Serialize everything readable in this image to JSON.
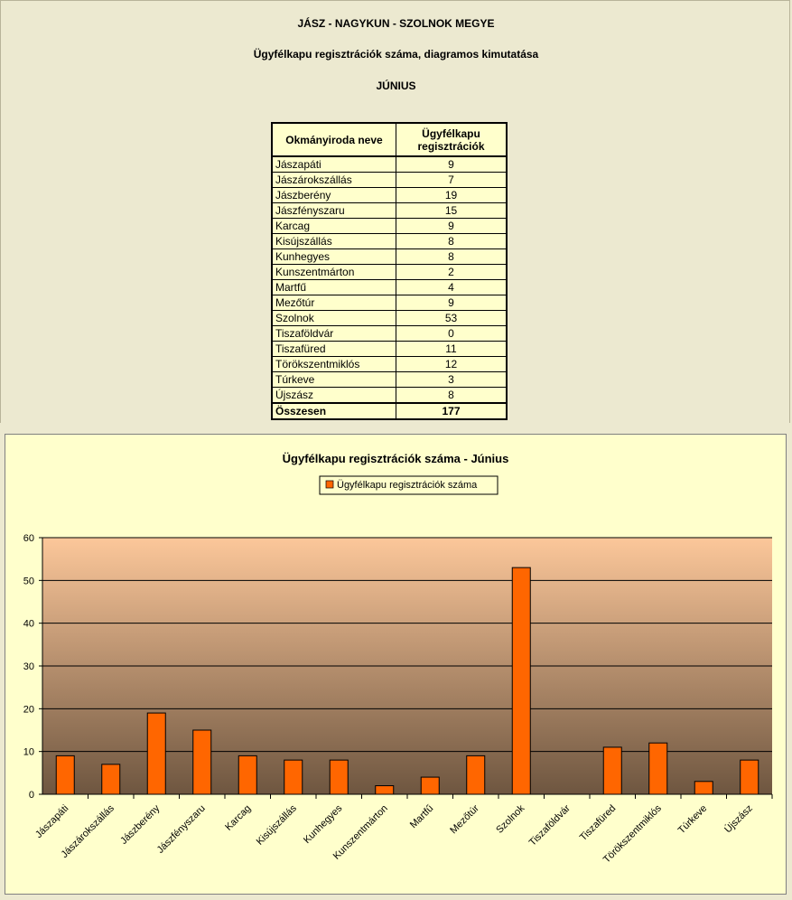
{
  "header": {
    "county": "JÁSZ - NAGYKUN - SZOLNOK MEGYE",
    "subtitle": "Ügyfélkapu regisztrációk száma, diagramos kimutatása",
    "month": "JÚNIUS"
  },
  "table": {
    "col1": "Okmányiroda neve",
    "col2_line1": "Ügyfélkapu",
    "col2_line2": "regisztrációk",
    "rows": [
      {
        "name": "Jászapáti",
        "value": "9"
      },
      {
        "name": "Jászárokszállás",
        "value": "7"
      },
      {
        "name": "Jászberény",
        "value": "19"
      },
      {
        "name": "Jászfényszaru",
        "value": "15"
      },
      {
        "name": "Karcag",
        "value": "9"
      },
      {
        "name": "Kisújszállás",
        "value": "8"
      },
      {
        "name": "Kunhegyes",
        "value": "8"
      },
      {
        "name": "Kunszentmárton",
        "value": "2"
      },
      {
        "name": "Martfű",
        "value": "4"
      },
      {
        "name": "Mezőtúr",
        "value": "9"
      },
      {
        "name": "Szolnok",
        "value": "53"
      },
      {
        "name": "Tiszaföldvár",
        "value": "0"
      },
      {
        "name": "Tiszafüred",
        "value": "11"
      },
      {
        "name": "Törökszentmiklós",
        "value": "12"
      },
      {
        "name": "Túrkeve",
        "value": "3"
      },
      {
        "name": "Újszász",
        "value": "8"
      }
    ],
    "total_label": "Összesen",
    "total_value": "177"
  },
  "colors": {
    "bar": "#FF6600",
    "plot_top": "#FCC79A",
    "plot_bottom": "#6E5640",
    "chart_bg": "#FFFFCC",
    "page_bg": "#ECE9D0"
  },
  "chart_data": {
    "type": "bar",
    "title": "Ügyfélkapu regisztrációk száma - Június",
    "categories": [
      "Jászapáti",
      "Jászárokszállás",
      "Jászberény",
      "Jászfényszaru",
      "Karcag",
      "Kisújszállás",
      "Kunhegyes",
      "Kunszentmárton",
      "Martfű",
      "Mezőtúr",
      "Szolnok",
      "Tiszaföldvár",
      "Tiszafüred",
      "Törökszentmiklós",
      "Túrkeve",
      "Újszász"
    ],
    "series": [
      {
        "name": "Ügyfélkapu regisztrációk száma",
        "values": [
          9,
          7,
          19,
          15,
          9,
          8,
          8,
          2,
          4,
          9,
          53,
          0,
          11,
          12,
          3,
          8
        ]
      }
    ],
    "ylim": [
      0,
      60
    ],
    "yticks": [
      0,
      10,
      20,
      30,
      40,
      50,
      60
    ],
    "grid": true,
    "legend": "top-center"
  }
}
